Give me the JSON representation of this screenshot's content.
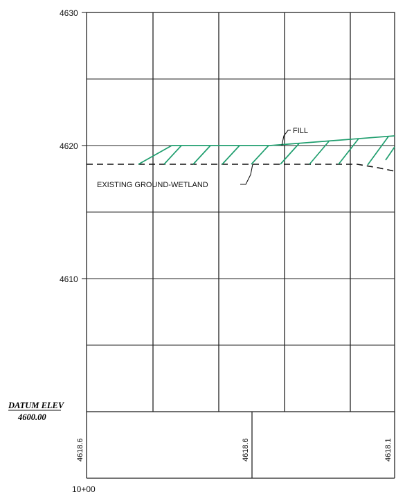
{
  "elevation_labels": {
    "e4630": "4630",
    "e4620": "4620",
    "e4610": "4610"
  },
  "notes": {
    "fill": "FILL",
    "existing_ground": "EXISTING GROUND-WETLAND"
  },
  "datum": {
    "label": "DATUM ELEV",
    "value": "4600.00"
  },
  "ground_elevations": [
    "4618.6",
    "4618.6",
    "4618.1"
  ],
  "station": "10+00",
  "colors": {
    "fill_line": "#1f9e6e",
    "linework": "#222222"
  }
}
